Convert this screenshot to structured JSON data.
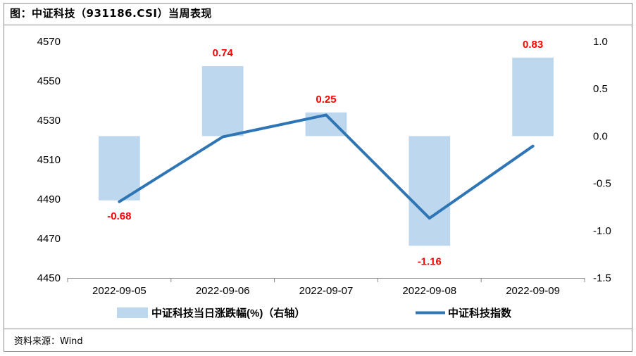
{
  "title": "图：中证科技（931186.CSI）当周表现",
  "source": "资料来源：Wind",
  "chart_data": {
    "type": "bar+line",
    "categories": [
      "2022-09-05",
      "2022-09-06",
      "2022-09-07",
      "2022-09-08",
      "2022-09-09"
    ],
    "bar_series": {
      "name": "中证科技当日涨跌幅(%)（右轴）",
      "axis": "right",
      "values": [
        -0.68,
        0.74,
        0.25,
        -1.16,
        0.83
      ],
      "labels": [
        "-0.68",
        "0.74",
        "0.25",
        "-1.16",
        "0.83"
      ],
      "color": "#bdd7ee",
      "label_color": "#ff0000"
    },
    "line_series": {
      "name": "中证科技指数",
      "axis": "left",
      "values": [
        4488.7,
        4521.6,
        4532.7,
        4480.3,
        4516.9
      ],
      "color": "#2e75b6"
    },
    "left_axis": {
      "ticks": [
        "4570",
        "4550",
        "4530",
        "4510",
        "4490",
        "4470",
        "4450"
      ],
      "ylim": [
        4450,
        4570
      ]
    },
    "right_axis": {
      "ticks": [
        "1.0",
        "0.5",
        "0.0",
        "-0.5",
        "-1.0",
        "-1.5"
      ],
      "ylim": [
        -1.5,
        1.0
      ]
    },
    "legend_position": "bottom",
    "grid": false
  }
}
